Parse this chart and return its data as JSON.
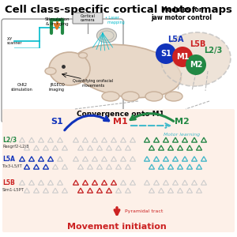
{
  "title": "Cell class-specific cortical motor maps",
  "title_fontsize": 9.5,
  "bg_color": "#ffffff",
  "panel_bg": "#fdf0e8",
  "colors": {
    "blue": "#1133bb",
    "red": "#cc2222",
    "green": "#228844",
    "cyan": "#00bbcc",
    "gray": "#cccccc",
    "orange": "#dd7722",
    "light_blue": "#44bbcc",
    "tan": "#e8d8c8",
    "dark_tan": "#c8b09a"
  },
  "modules_title": "Modules for\njaw motor control",
  "convergence_title": "Convergence onto M1",
  "movement_text": "Movement initiation",
  "pyramidal_text": "Pyramidal tract",
  "motor_learning_text": "Motor learning",
  "row_labels": [
    {
      "layer": "L2/3",
      "gene": "Rasgrf2-L2/3",
      "color": "#228844"
    },
    {
      "layer": "L5A",
      "gene": "Tlx3-L5/IT",
      "color": "#1133bb"
    },
    {
      "layer": "L5B",
      "gene": "Sim1-L5PT",
      "color": "#cc2222"
    }
  ]
}
